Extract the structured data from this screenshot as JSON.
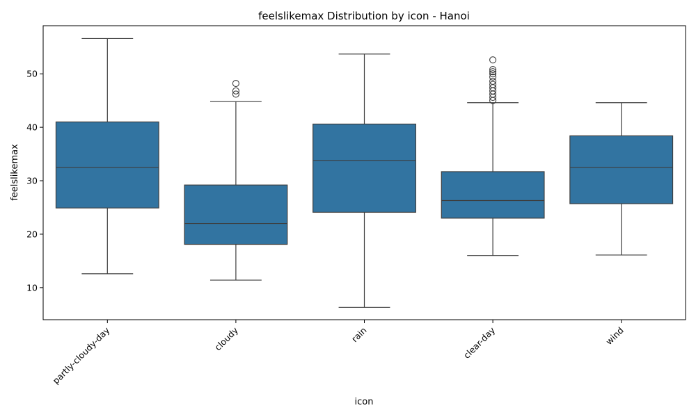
{
  "chart_data": {
    "type": "box",
    "title": "feelslikemax Distribution by icon - Hanoi",
    "xlabel": "icon",
    "ylabel": "feelslikemax",
    "ylim": [
      4,
      59
    ],
    "yticks": [
      10,
      20,
      30,
      40,
      50
    ],
    "categories": [
      "partly-cloudy-day",
      "cloudy",
      "rain",
      "clear-day",
      "wind"
    ],
    "boxes": [
      {
        "category": "partly-cloudy-day",
        "whisker_low": 12.6,
        "q1": 24.9,
        "median": 32.5,
        "q3": 41.0,
        "whisker_high": 56.6,
        "outliers": []
      },
      {
        "category": "cloudy",
        "whisker_low": 11.4,
        "q1": 18.1,
        "median": 22.0,
        "q3": 29.2,
        "whisker_high": 44.8,
        "outliers": [
          46.2,
          46.8,
          48.2
        ]
      },
      {
        "category": "rain",
        "whisker_low": 6.3,
        "q1": 24.1,
        "median": 33.8,
        "q3": 40.6,
        "whisker_high": 53.7,
        "outliers": []
      },
      {
        "category": "clear-day",
        "whisker_low": 16.0,
        "q1": 23.0,
        "median": 26.3,
        "q3": 31.7,
        "whisker_high": 44.6,
        "outliers": [
          45.0,
          45.6,
          46.2,
          46.8,
          47.4,
          48.0,
          48.6,
          49.4,
          50.0,
          50.4,
          50.8,
          52.6
        ]
      },
      {
        "category": "wind",
        "whisker_low": 16.1,
        "q1": 25.7,
        "median": 32.5,
        "q3": 38.4,
        "whisker_high": 44.6,
        "outliers": []
      }
    ],
    "box_color": "#3274a1",
    "line_color": "#3d3d3d",
    "grid": false,
    "x_tick_rotation": 45
  }
}
